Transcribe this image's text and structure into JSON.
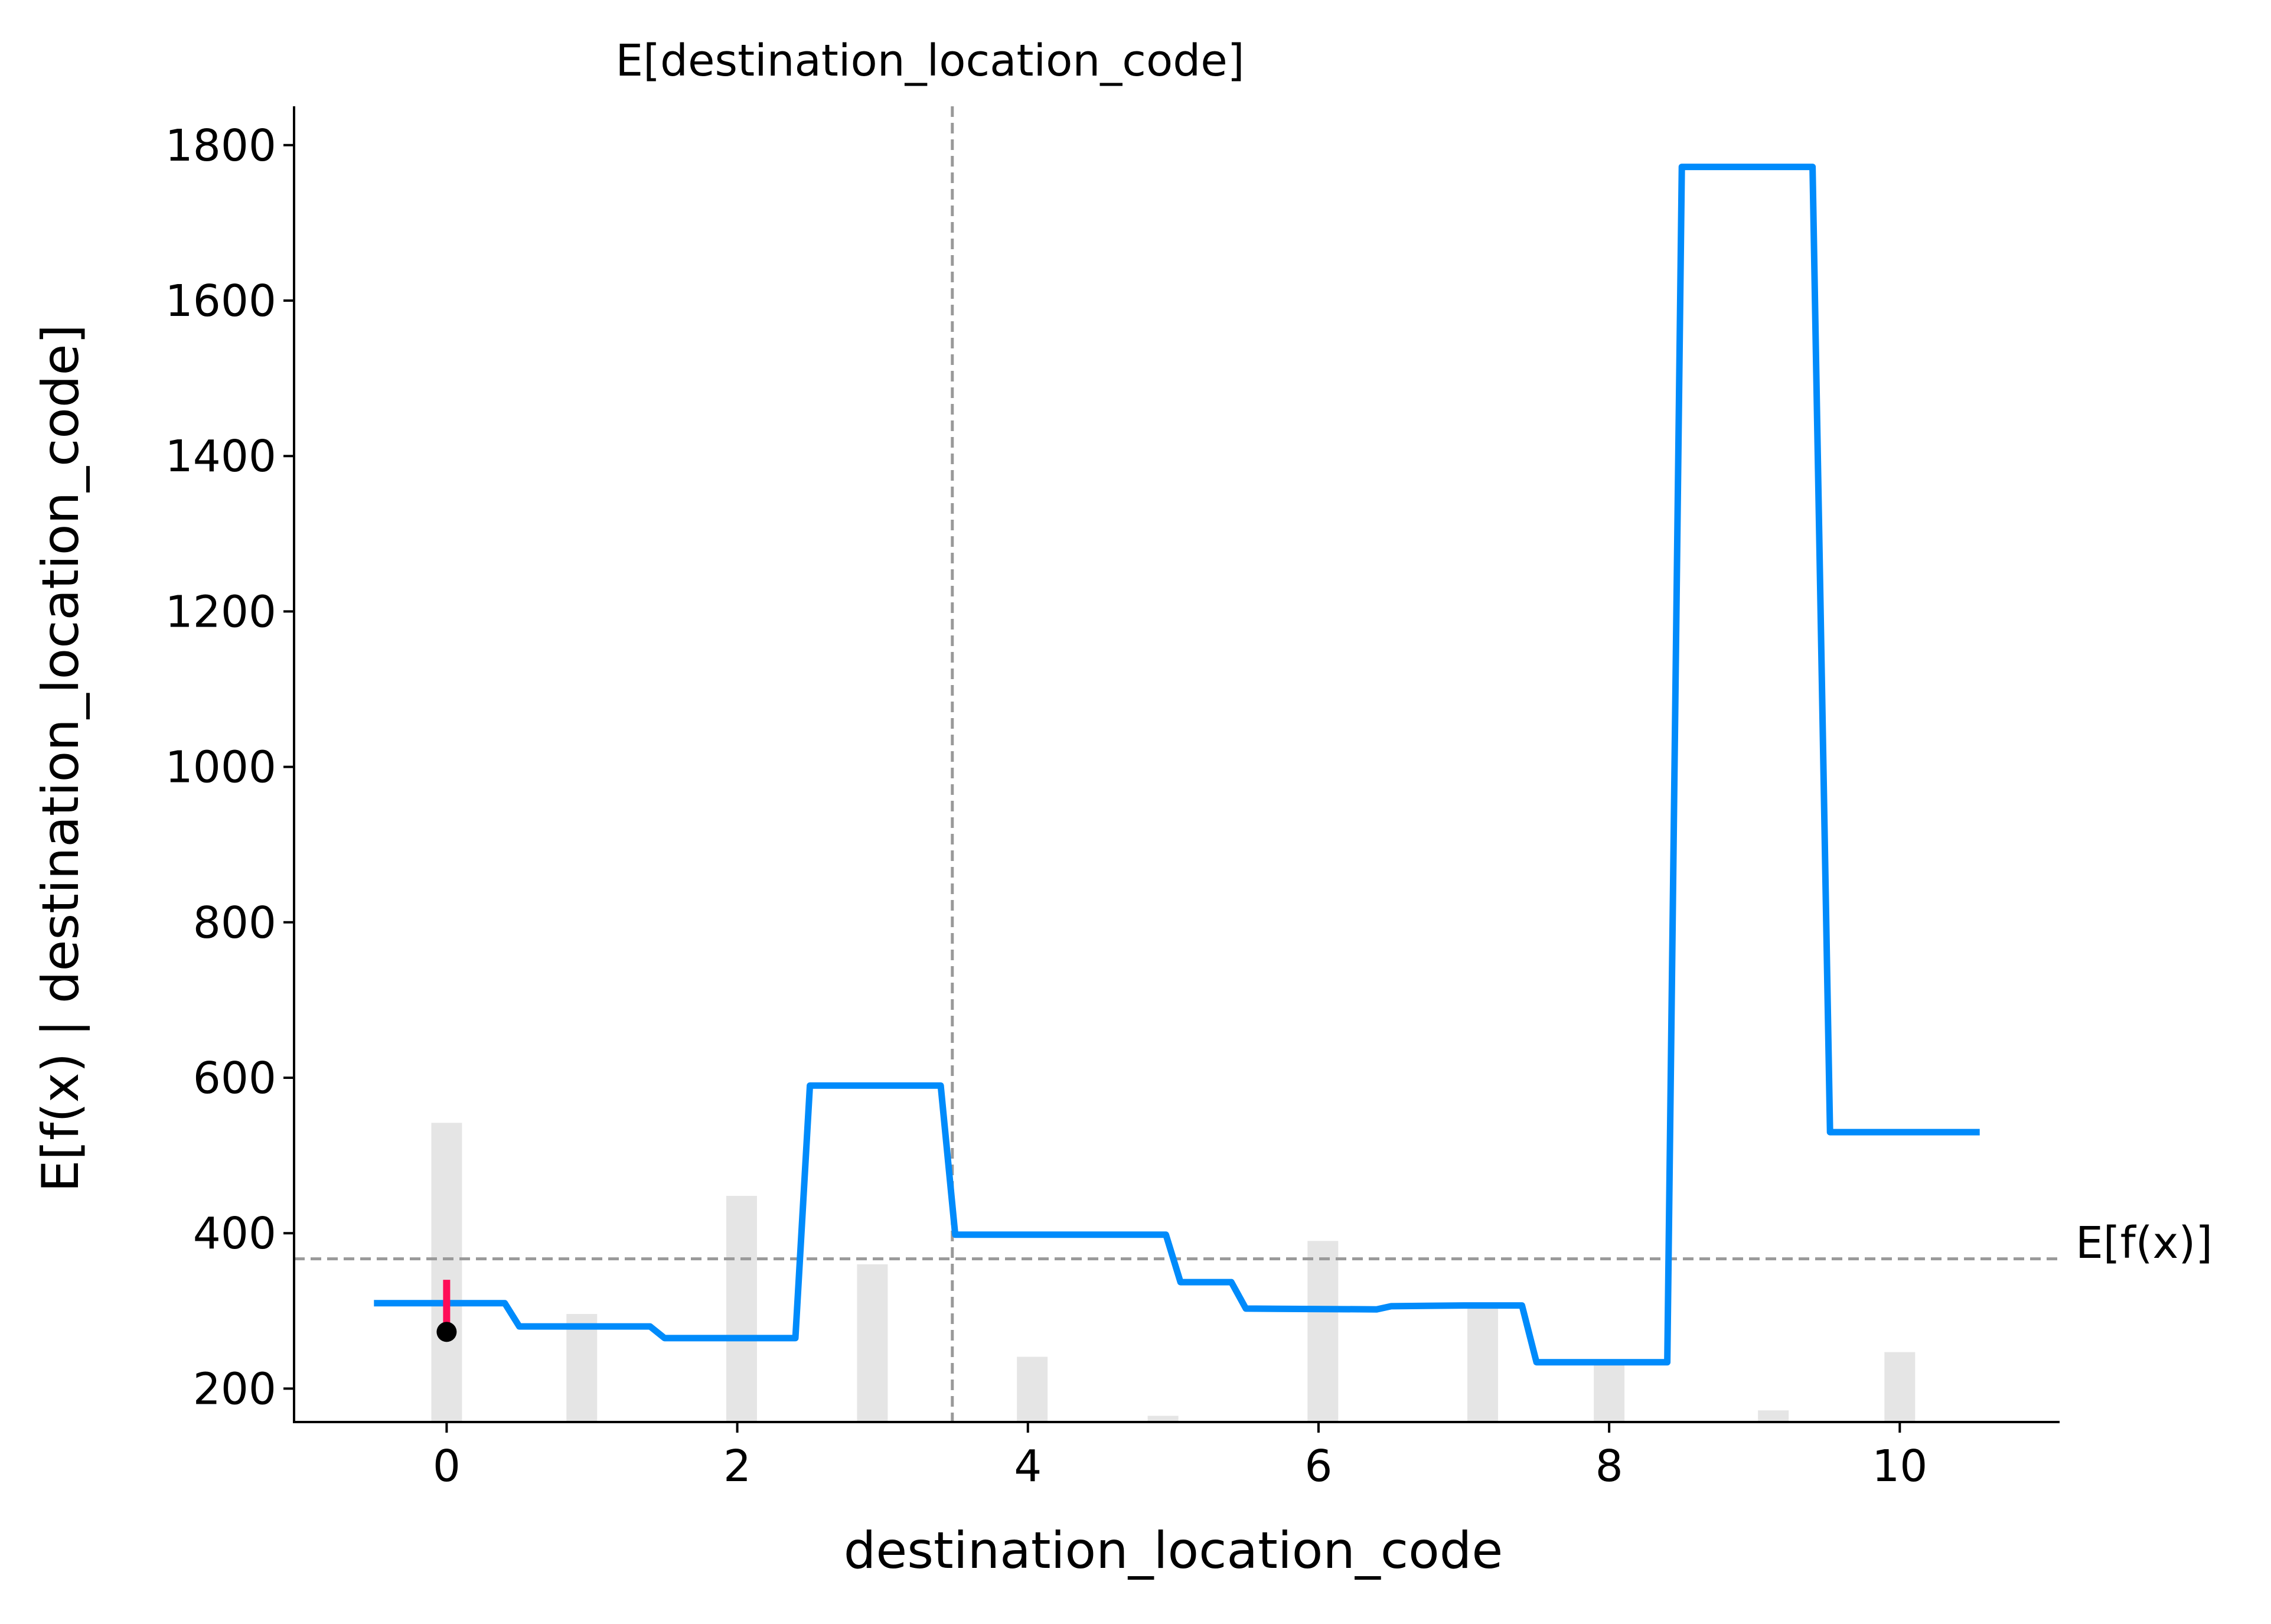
{
  "chart_data": {
    "type": "line",
    "title": "",
    "xlabel": "destination_location_code",
    "ylabel": "E[f(x) | destination_location_code]",
    "xlim": [
      -1.05,
      11.1
    ],
    "ylim": [
      157,
      1850
    ],
    "xticks": [
      0,
      2,
      4,
      6,
      8,
      10
    ],
    "yticks": [
      200,
      400,
      600,
      800,
      1000,
      1200,
      1400,
      1600,
      1800
    ],
    "grid": false,
    "colors": {
      "line": "#008bfb",
      "histogram": "#e5e5e5",
      "reference": "#999999",
      "marker_line": "#ff0d57",
      "marker_point": "#000000",
      "axis": "#000000"
    },
    "series": [
      {
        "x": [
          -0.5,
          0.4,
          0.5,
          1.4,
          1.5,
          2.4,
          2.5,
          3.4,
          3.5,
          4.95,
          5.05,
          5.4,
          5.5,
          6.4,
          6.5,
          7.0,
          7.4,
          7.5,
          8.4,
          8.5,
          9.4,
          9.52,
          10.55
        ],
        "y": [
          310,
          310,
          280,
          280,
          265,
          265,
          590,
          590,
          398,
          398,
          337,
          337,
          303,
          302,
          306,
          307,
          307,
          234,
          234,
          1772,
          1772,
          530,
          530
        ]
      }
    ],
    "histogram": {
      "x": [
        0,
        0.93,
        2.03,
        2.93,
        4.03,
        4.93,
        6.03,
        7.13,
        8.0,
        9.13,
        10.0
      ],
      "values": [
        542,
        296,
        448,
        360,
        241,
        165,
        390,
        306,
        231,
        172,
        247
      ]
    },
    "reference_lines": {
      "expected_value": {
        "y": 367,
        "label": "E[f(x)]"
      },
      "feature_mean": {
        "x": 3.48,
        "label": "E[destination_location_code]"
      }
    },
    "instance": {
      "x": 0,
      "y_point": 273,
      "y_bar_top": 340
    }
  }
}
